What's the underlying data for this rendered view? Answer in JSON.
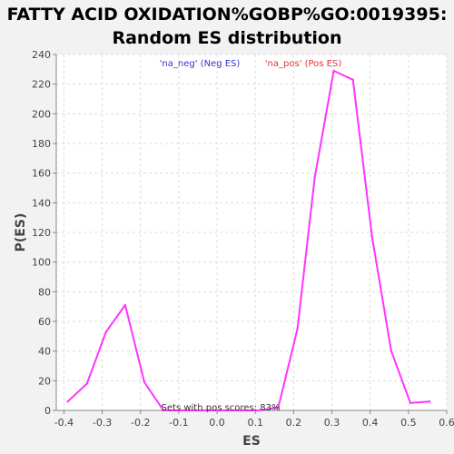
{
  "chart_data": {
    "type": "line",
    "title": [
      "FATTY ACID OXIDATION%GOBP%GO:0019395:",
      "Random ES distribution"
    ],
    "xlabel": "ES",
    "ylabel": "P(ES)",
    "xlim": [
      -0.42,
      0.6
    ],
    "ylim": [
      0,
      240
    ],
    "xticks": [
      "-0.4",
      "-0.3",
      "-0.2",
      "-0.1",
      "0.0",
      "0.1",
      "0.2",
      "0.3",
      "0.4",
      "0.5",
      "0.6"
    ],
    "xtick_values": [
      -0.4,
      -0.3,
      -0.2,
      -0.1,
      0.0,
      0.1,
      0.2,
      0.3,
      0.4,
      0.5,
      0.6
    ],
    "yticks": [
      "0",
      "20",
      "40",
      "60",
      "80",
      "100",
      "120",
      "140",
      "160",
      "180",
      "200",
      "220",
      "240"
    ],
    "ytick_values": [
      0,
      20,
      40,
      60,
      80,
      100,
      120,
      140,
      160,
      180,
      200,
      220,
      240
    ],
    "grid": true,
    "legend": {
      "placement": "top-center",
      "entries": [
        {
          "name": "'na_neg' (Neg ES)",
          "color": "#3333cc"
        },
        {
          "name": "'na_pos' (Pos ES)",
          "color": "#dd3333"
        }
      ]
    },
    "annotation": "Sets with pos scores: 83%",
    "series": [
      {
        "color": "#ff33ff",
        "x": [
          -0.39,
          -0.34,
          -0.29,
          -0.24,
          -0.19,
          -0.14,
          -0.09,
          -0.04,
          0.01,
          0.06,
          0.11,
          0.16,
          0.21,
          0.255,
          0.305,
          0.355,
          0.405,
          0.455,
          0.505,
          0.555
        ],
        "y": [
          6,
          18,
          53,
          71,
          19,
          0,
          0,
          0,
          0,
          0,
          0,
          2,
          55,
          157,
          229,
          223,
          117,
          40,
          5,
          6
        ]
      }
    ]
  }
}
